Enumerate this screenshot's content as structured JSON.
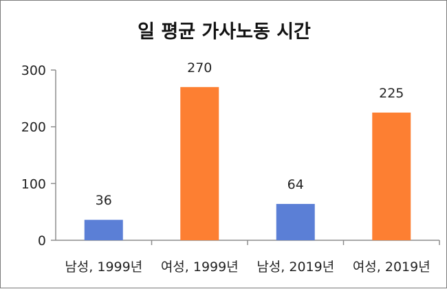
{
  "chart_data": {
    "type": "bar",
    "title": "일 평균 가사노동 시간",
    "xlabel": "",
    "ylabel": "",
    "categories": [
      "남성, 1999년",
      "여성, 1999년",
      "남성, 2019년",
      "여성, 2019년"
    ],
    "values": [
      36,
      270,
      64,
      225
    ],
    "bar_colors": [
      "#5b7fd6",
      "#fd7f32",
      "#5b7fd6",
      "#fd7f32"
    ],
    "ylim": [
      0,
      300
    ],
    "yticks": [
      0,
      100,
      200,
      300
    ],
    "grid": false,
    "legend": "none",
    "data_labels": true
  }
}
